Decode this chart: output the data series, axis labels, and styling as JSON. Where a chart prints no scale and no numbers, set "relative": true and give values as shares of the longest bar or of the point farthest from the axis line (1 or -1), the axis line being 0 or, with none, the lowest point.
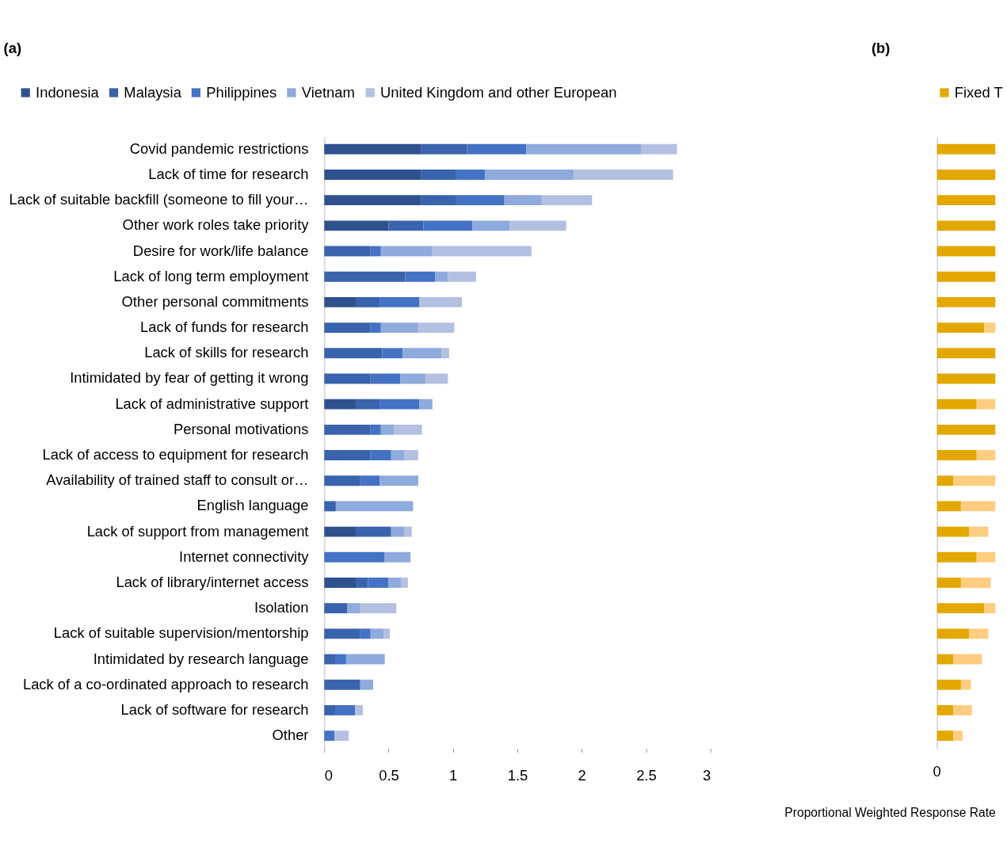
{
  "chart_data": [
    {
      "type": "bar",
      "title": "(a)",
      "orientation": "horizontal",
      "stacked": true,
      "legend": "top",
      "grid": false,
      "categories": [
        "Covid pandemic restrictions",
        "Lack of time for research",
        "Lack of suitable backfill (someone to fill your…",
        "Other work roles take priority",
        "Desire for work/life balance",
        "Lack of long term employment",
        "Other personal commitments",
        "Lack of funds for research",
        "Lack of skills for research",
        "Intimidated by fear of getting it wrong",
        "Lack of administrative support",
        "Personal motivations",
        "Lack of access to equipment for research",
        "Availability of trained staff to consult or…",
        "English language",
        "Lack of support from management",
        "Internet connectivity",
        "Lack of library/internet access",
        "Isolation",
        "Lack of suitable supervision/mentorship",
        "Intimidated by research language",
        "Lack of a co-ordinated approach to research",
        "Lack of software for research",
        "Other"
      ],
      "xlim": [
        0,
        3
      ],
      "xticks": [
        {
          "value": 0,
          "label": "0"
        },
        0.5,
        {
          "value": 1,
          "label": "1"
        },
        1.5,
        {
          "value": 2,
          "label": "2"
        },
        2.5,
        {
          "value": 3,
          "label": "3"
        }
      ],
      "series": [
        {
          "name": "Indonesia",
          "color": "#2f528f",
          "values": [
            0.75,
            0.75,
            0.75,
            0.5,
            0,
            0,
            0.25,
            0,
            0,
            0,
            0.25,
            0,
            0,
            0,
            0,
            0.25,
            0,
            0.25,
            0,
            0,
            0,
            0,
            0,
            0
          ]
        },
        {
          "name": "Malaysia",
          "color": "#3a63ad",
          "values": [
            0.36,
            0.27,
            0.27,
            0.27,
            0.36,
            0.63,
            0.18,
            0.36,
            0.45,
            0.36,
            0.18,
            0.36,
            0.36,
            0.28,
            0.09,
            0.27,
            0,
            0.09,
            0.18,
            0.28,
            0.09,
            0.28,
            0.09,
            0
          ]
        },
        {
          "name": "Philippines",
          "color": "#4472c4",
          "values": [
            0.46,
            0.23,
            0.38,
            0.38,
            0.08,
            0.23,
            0.31,
            0.08,
            0.16,
            0.23,
            0.31,
            0.08,
            0.16,
            0.15,
            0,
            0,
            0.47,
            0.16,
            0,
            0.08,
            0.08,
            0,
            0.15,
            0.08
          ]
        },
        {
          "name": "Vietnam",
          "color": "#8faadc",
          "values": [
            0.89,
            0.69,
            0.29,
            0.29,
            0.4,
            0.1,
            0,
            0.29,
            0.3,
            0.2,
            0.1,
            0.1,
            0.1,
            0.3,
            0.6,
            0.1,
            0.2,
            0.1,
            0.1,
            0.1,
            0.3,
            0.1,
            0,
            0
          ]
        },
        {
          "name": "United Kingdom and other European",
          "color": "#b4c0e2",
          "values": [
            0.28,
            0.77,
            0.39,
            0.44,
            0.77,
            0.22,
            0.33,
            0.28,
            0.06,
            0.17,
            0,
            0.22,
            0.11,
            0,
            0,
            0.06,
            0,
            0.05,
            0.28,
            0.05,
            0,
            0,
            0.06,
            0.11
          ]
        }
      ]
    },
    {
      "type": "bar",
      "title": "(b)",
      "orientation": "horizontal",
      "stacked": true,
      "relative": true,
      "legend": "top",
      "grid": false,
      "xlabel": "Proportional Weighted Response Rate",
      "annotations": [
        "0"
      ],
      "categories": [
        null,
        null,
        null,
        null,
        null,
        null,
        null,
        null,
        null,
        null,
        null,
        null,
        null,
        null,
        null,
        null,
        null,
        null,
        null,
        null,
        null,
        null,
        null,
        null
      ],
      "series": [
        {
          "name": "Fixed T",
          "color": "#e3a800",
          "values": [
            1,
            1,
            1,
            1,
            1,
            1,
            1,
            0.81,
            1,
            1,
            0.68,
            1,
            0.68,
            0.28,
            0.41,
            0.55,
            0.68,
            0.41,
            0.81,
            0.55,
            0.28,
            0.41,
            0.28,
            0.28
          ]
        },
        {
          "color": "#ffcd80",
          "values": [
            0,
            0,
            0,
            0,
            0,
            0,
            0,
            0.19,
            0,
            0,
            0.32,
            0,
            0.32,
            0.72,
            0.59,
            0.33,
            0.32,
            0.51,
            0.19,
            0.33,
            0.49,
            0.17,
            0.32,
            0.16
          ]
        }
      ]
    }
  ]
}
